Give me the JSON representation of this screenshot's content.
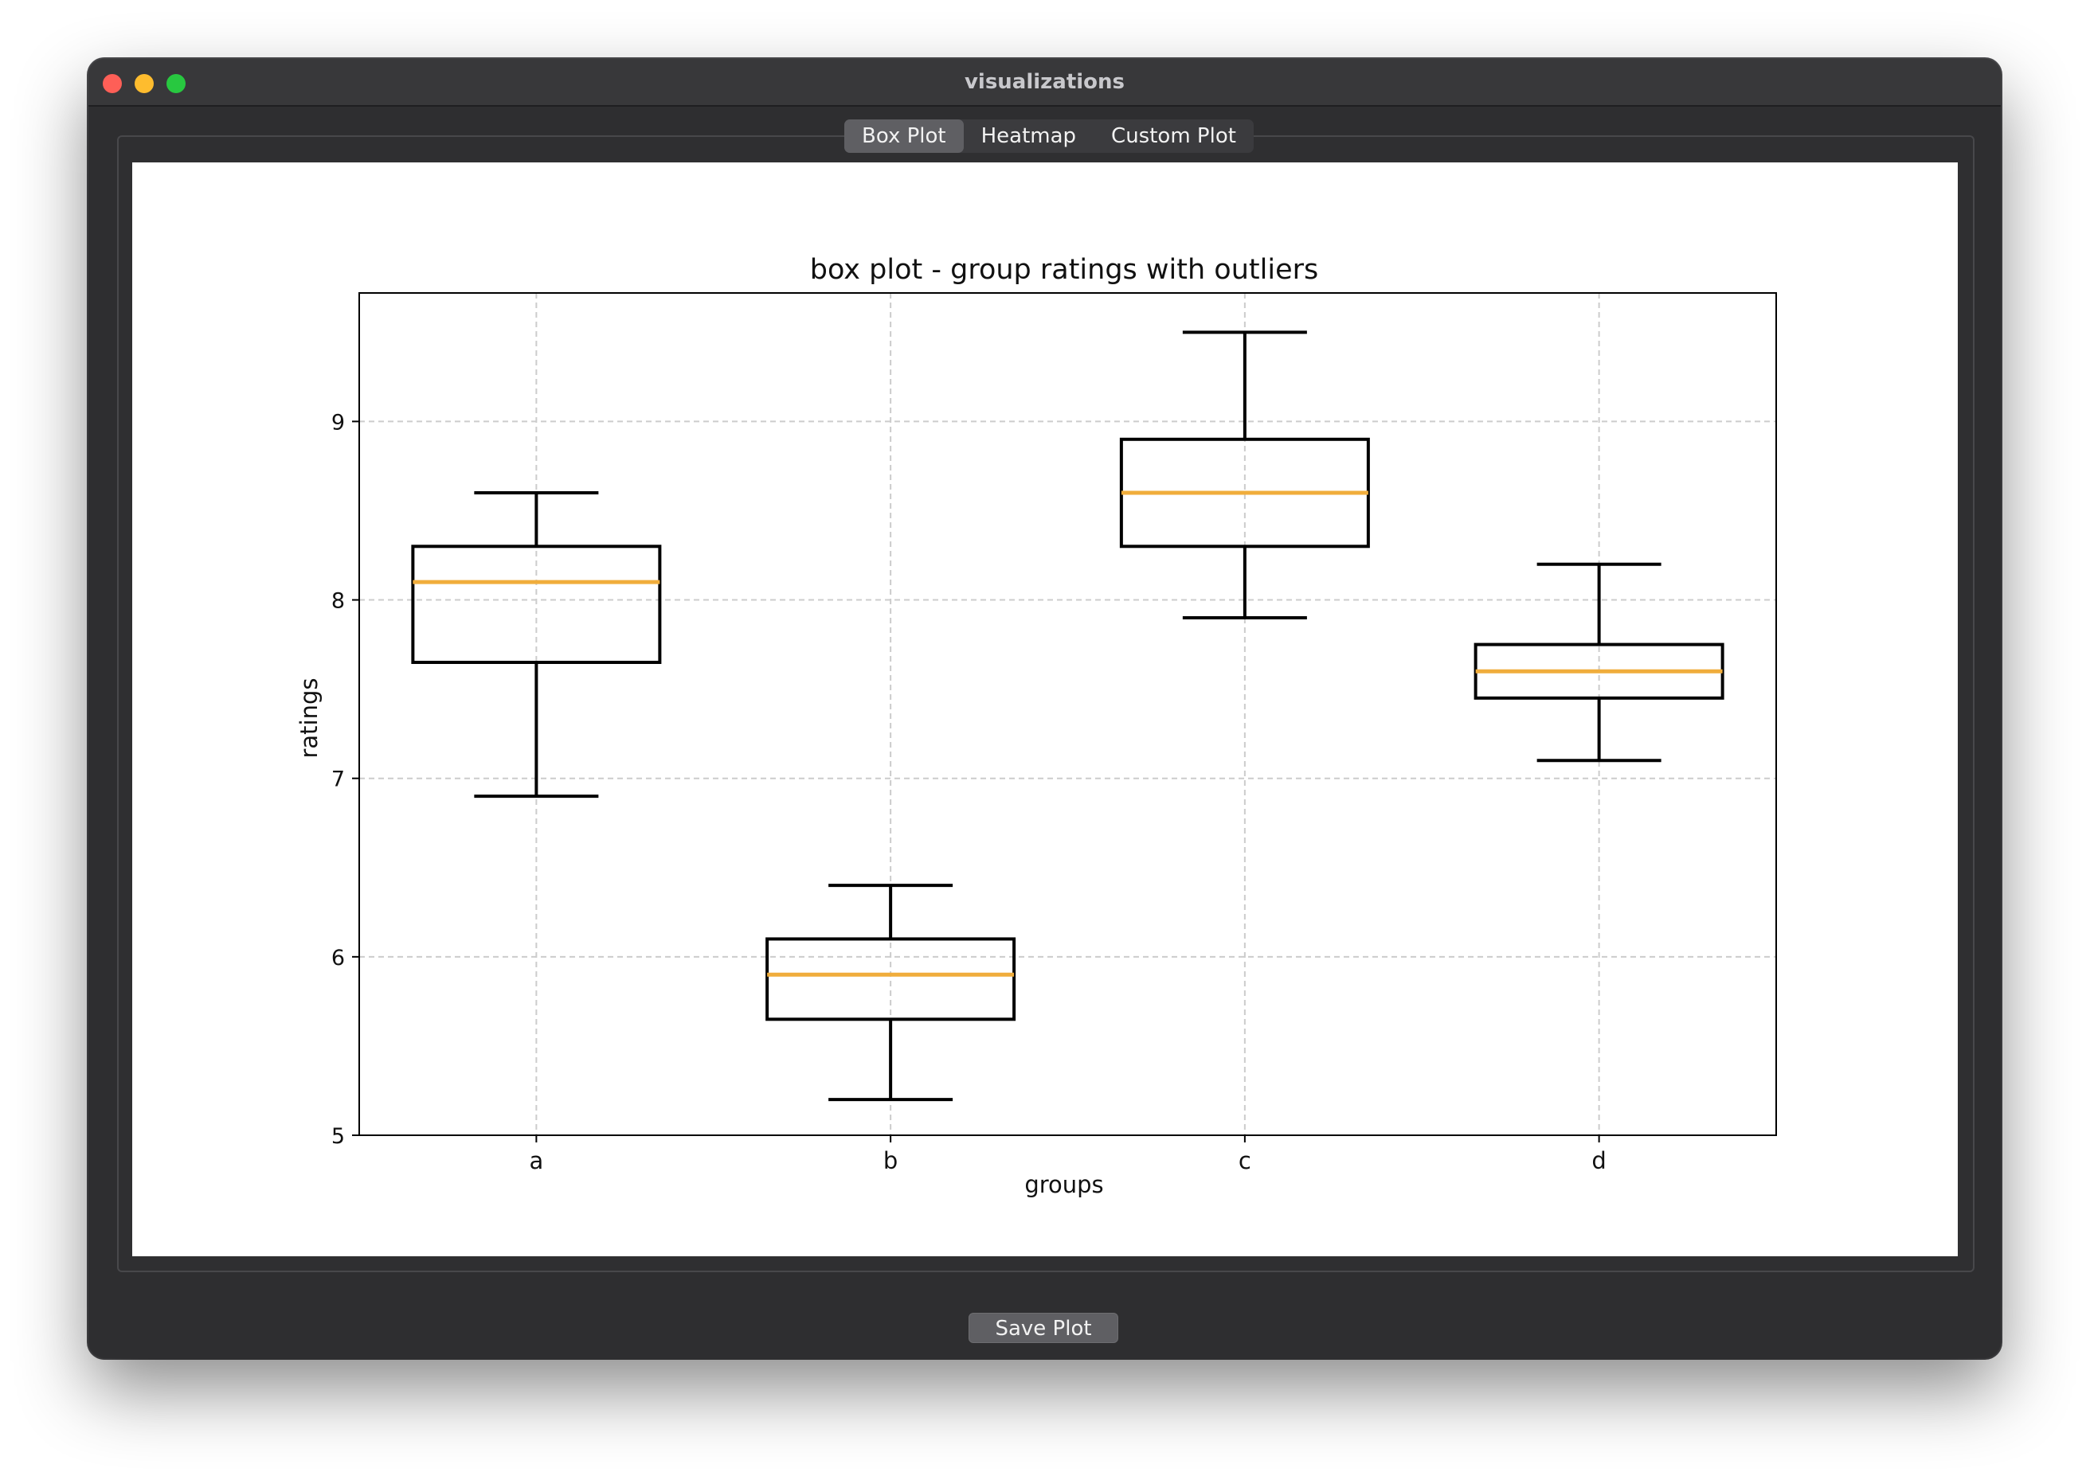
{
  "window": {
    "title": "visualizations"
  },
  "tabs": [
    {
      "label": "Box Plot",
      "active": true
    },
    {
      "label": "Heatmap",
      "active": false
    },
    {
      "label": "Custom Plot",
      "active": false
    }
  ],
  "footer": {
    "save_label": "Save Plot"
  },
  "colors": {
    "median": "#f0ad3c",
    "box": "#000000",
    "grid": "#cccccc"
  },
  "chart_data": {
    "type": "box",
    "title": "box plot - group ratings with outliers",
    "xlabel": "groups",
    "ylabel": "ratings",
    "ylim": [
      5,
      9.72
    ],
    "yticks": [
      5,
      6,
      7,
      8,
      9
    ],
    "grid": true,
    "categories": [
      "a",
      "b",
      "c",
      "d"
    ],
    "boxes": [
      {
        "label": "a",
        "whisker_low": 6.9,
        "q1": 7.65,
        "median": 8.1,
        "q3": 8.3,
        "whisker_high": 8.6
      },
      {
        "label": "b",
        "whisker_low": 5.2,
        "q1": 5.65,
        "median": 5.9,
        "q3": 6.1,
        "whisker_high": 6.4
      },
      {
        "label": "c",
        "whisker_low": 7.9,
        "q1": 8.3,
        "median": 8.6,
        "q3": 8.9,
        "whisker_high": 9.5
      },
      {
        "label": "d",
        "whisker_low": 7.1,
        "q1": 7.45,
        "median": 7.6,
        "q3": 7.75,
        "whisker_high": 8.2
      }
    ]
  }
}
